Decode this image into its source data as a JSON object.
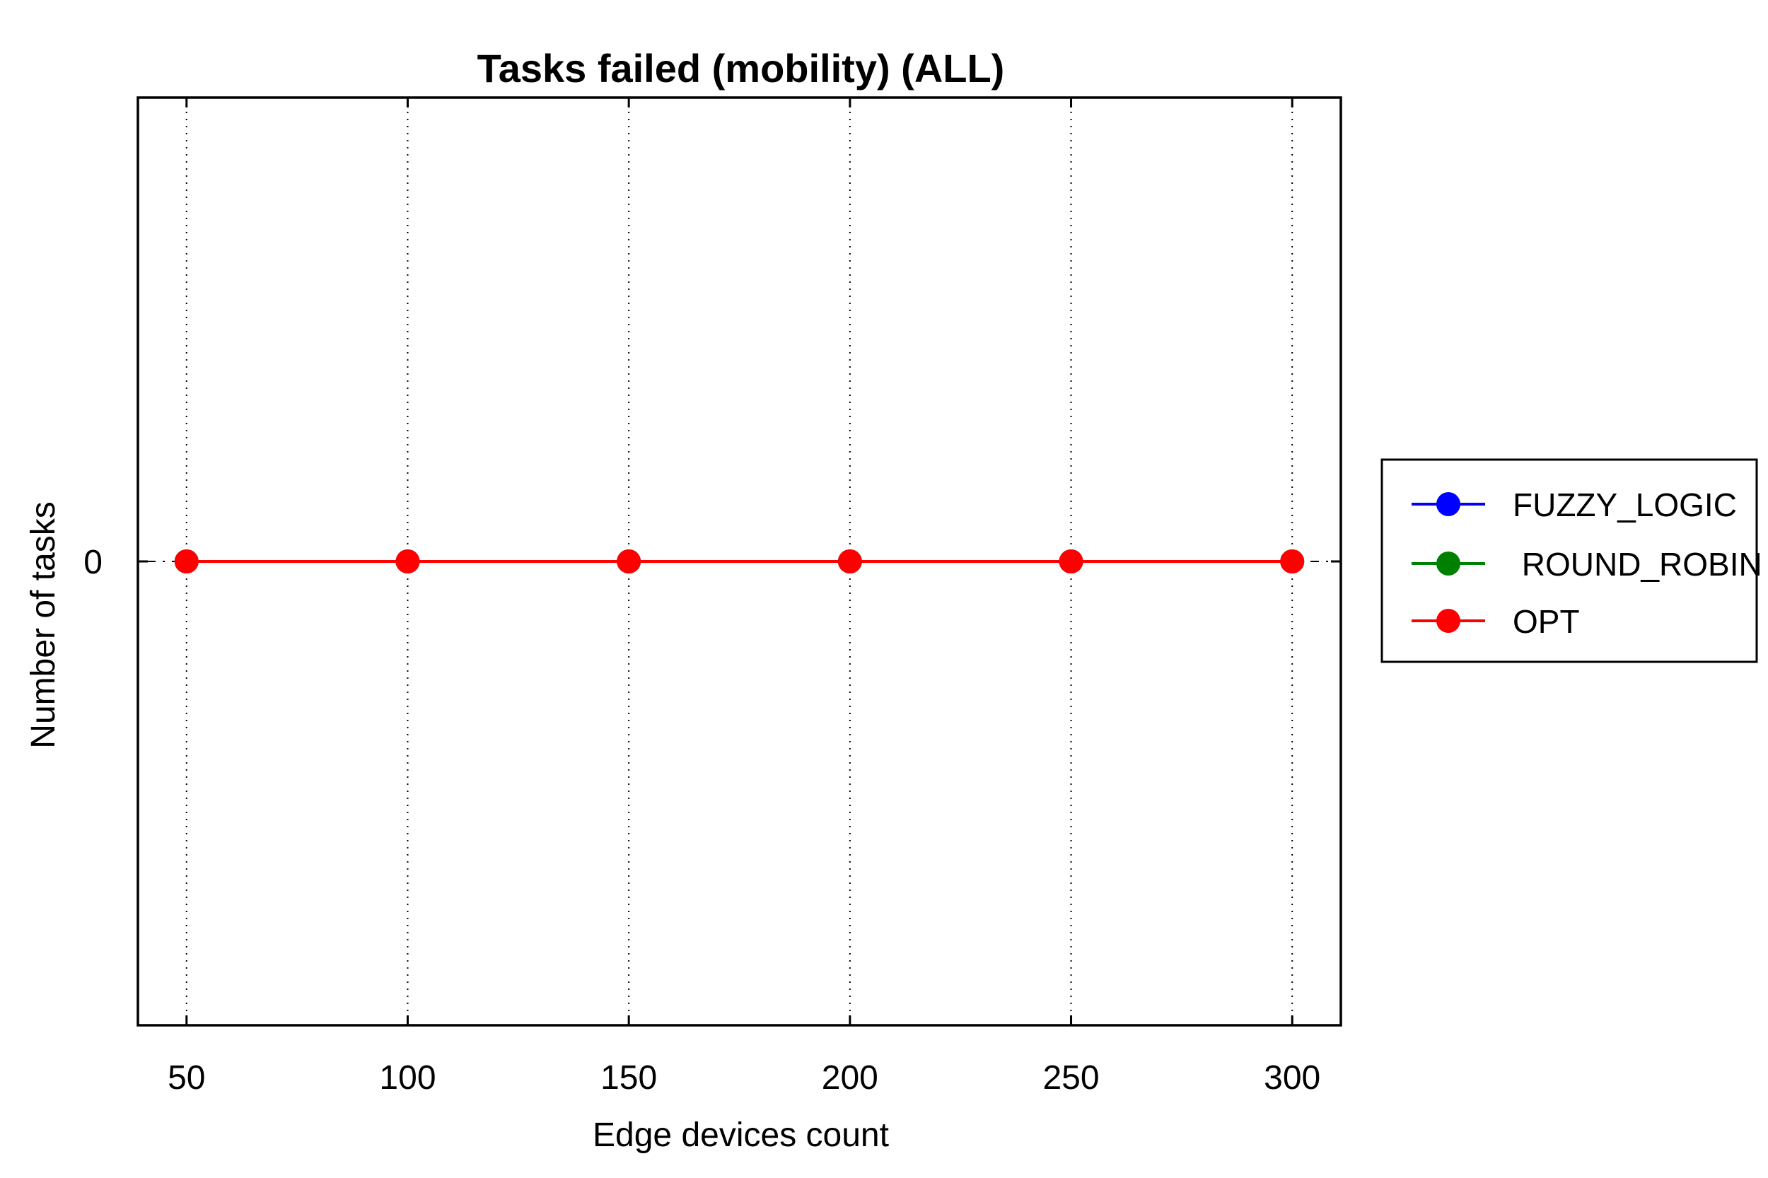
{
  "chart_data": {
    "type": "line",
    "title": "Tasks failed (mobility) (ALL)",
    "xlabel": "Edge devices count",
    "ylabel": "Number of tasks",
    "x": [
      50,
      100,
      150,
      200,
      250,
      300
    ],
    "xlim": [
      39,
      311
    ],
    "ylim": [
      -1,
      1
    ],
    "yticks": [
      0
    ],
    "ytick_labels": [
      "0"
    ],
    "grid": "vertical-dotted",
    "legend_placement": "outside-right",
    "series": [
      {
        "name": "FUZZY_LOGIC",
        "color": "#0000ff",
        "values": [
          0,
          0,
          0,
          0,
          0,
          0
        ]
      },
      {
        "name": " ROUND_ROBIN",
        "color": "#008000",
        "values": [
          0,
          0,
          0,
          0,
          0,
          0
        ]
      },
      {
        "name": "OPT",
        "color": "#ff0000",
        "values": [
          0,
          0,
          0,
          0,
          0,
          0
        ]
      }
    ]
  }
}
